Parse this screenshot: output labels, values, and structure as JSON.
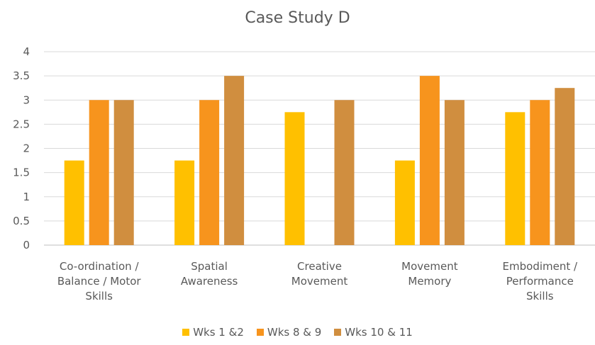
{
  "chart_data": {
    "type": "bar",
    "title": "Case Study D",
    "xlabel": "",
    "ylabel": "",
    "ylim": [
      0,
      4
    ],
    "yticks": [
      "0",
      "0.5",
      "1",
      "1.5",
      "2",
      "2.5",
      "3",
      "3.5",
      "4"
    ],
    "categories": [
      [
        "Co-ordination /",
        "Balance / Motor",
        "Skills"
      ],
      [
        "Spatial",
        "Awareness"
      ],
      [
        "Creative",
        "Movement"
      ],
      [
        "Movement",
        "Memory"
      ],
      [
        "Embodiment /",
        "Performance",
        "Skills"
      ]
    ],
    "series": [
      {
        "name": "Wks 1 &2",
        "color": "#FFC000",
        "values": [
          1.75,
          1.75,
          2.75,
          1.75,
          2.75
        ]
      },
      {
        "name": "Wks 8 & 9",
        "color": "#F7941D",
        "values": [
          3.0,
          3.0,
          0,
          3.5,
          3.0
        ]
      },
      {
        "name": "Wks 10 & 11",
        "color": "#D08E3F",
        "values": [
          3.0,
          3.5,
          3.0,
          3.0,
          3.25
        ]
      }
    ],
    "grid": true,
    "legend_position": "bottom"
  }
}
